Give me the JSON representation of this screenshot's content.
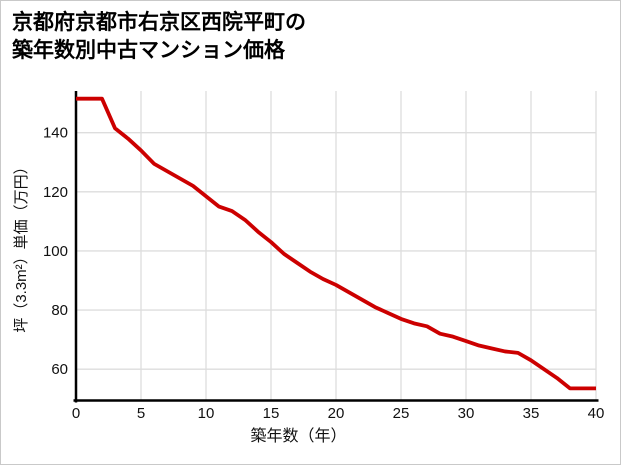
{
  "chart": {
    "title_line1": "京都府京都市右京区西院平町の",
    "title_line2": "築年数別中古マンション価格",
    "xlabel": "築年数（年）",
    "ylabel": "坪（3.3m²）単価（万円）"
  },
  "chart_data": {
    "type": "line",
    "title": "京都府京都市右京区西院平町の築年数別中古マンション価格",
    "xlabel": "築年数（年）",
    "ylabel": "坪（3.3m²）単価（万円）",
    "x": [
      0,
      1,
      2,
      3,
      4,
      5,
      6,
      7,
      8,
      9,
      10,
      11,
      12,
      13,
      14,
      15,
      16,
      17,
      18,
      19,
      20,
      21,
      22,
      23,
      24,
      25,
      26,
      27,
      28,
      29,
      30,
      31,
      32,
      33,
      34,
      35,
      36,
      37,
      38,
      39,
      40
    ],
    "values": [
      151.5,
      151.5,
      151.5,
      141.5,
      138,
      134,
      129.5,
      127,
      124.5,
      122,
      118.5,
      115,
      113.5,
      110.5,
      106.5,
      103,
      99,
      96,
      93,
      90.5,
      88.5,
      86,
      83.5,
      81,
      79,
      77,
      75.5,
      74.5,
      72,
      71,
      69.5,
      68,
      67,
      66,
      65.5,
      63,
      60,
      57,
      53.5,
      53.5,
      53.5
    ],
    "xlim": [
      0,
      40
    ],
    "ylim": [
      49.4,
      154.1
    ],
    "x_ticks": [
      0,
      5,
      10,
      15,
      20,
      25,
      30,
      35,
      40
    ],
    "y_ticks": [
      60,
      80,
      100,
      120,
      140
    ],
    "grid": true,
    "legend": false,
    "colors": {
      "line": "#cc0000",
      "grid": "#dddddd",
      "axis": "#000000",
      "text": "#111111",
      "background": "#ffffff",
      "border": "#c9c9c9"
    }
  }
}
